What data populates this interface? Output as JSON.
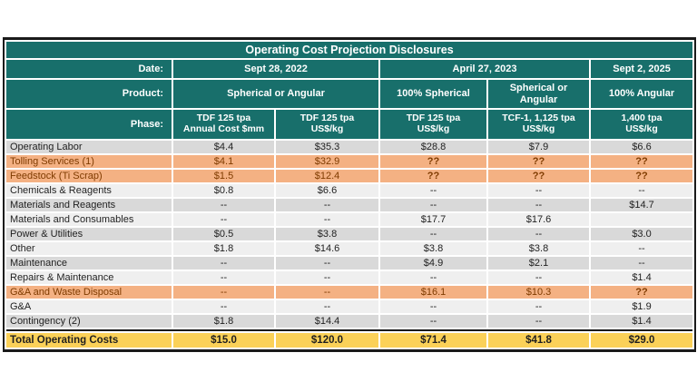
{
  "colors": {
    "teal": "#186f6b",
    "orange": "#f4b183",
    "orange_text": "#7f3b00",
    "yellow": "#fbd158",
    "row_gray": "#d9d9d9",
    "row_light": "#efefef",
    "border_black": "#1a1a1a",
    "header_text": "#ffffff",
    "body_text": "#1f1f1f"
  },
  "chart_data": {
    "type": "table",
    "title": "Operating Cost Projection Disclosures",
    "header": {
      "date_label": "Date:",
      "dates": [
        "Sept 28, 2022",
        "April 27, 2023",
        "Sept 2, 2025"
      ],
      "product_label": "Product:",
      "products": [
        "Spherical or Angular",
        "100% Spherical",
        "Spherical or Angular",
        "100% Angular"
      ],
      "phase_label": "Phase:",
      "phases": [
        {
          "line1": "TDF 125 tpa",
          "line2": "Annual Cost $mm"
        },
        {
          "line1": "TDF 125 tpa",
          "line2": "US$/kg"
        },
        {
          "line1": "TDF 125 tpa",
          "line2": "US$/kg"
        },
        {
          "line1": "TCF-1, 1,125 tpa",
          "line2": "US$/kg"
        },
        {
          "line1": "1,400 tpa",
          "line2": "US$/kg"
        }
      ]
    },
    "rows": [
      {
        "label": "Operating Labor",
        "values": [
          "$4.4",
          "$35.3",
          "$28.8",
          "$7.9",
          "$6.6"
        ],
        "flagged": false
      },
      {
        "label": "Tolling Services (1)",
        "values": [
          "$4.1",
          "$32.9",
          "??",
          "??",
          "??"
        ],
        "flagged": true
      },
      {
        "label": "Feedstock (Ti Scrap)",
        "values": [
          "$1.5",
          "$12.4",
          "??",
          "??",
          "??"
        ],
        "flagged": true
      },
      {
        "label": "Chemicals & Reagents",
        "values": [
          "$0.8",
          "$6.6",
          "--",
          "--",
          "--"
        ],
        "flagged": false
      },
      {
        "label": "Materials and Reagents",
        "values": [
          "--",
          "--",
          "--",
          "--",
          "$14.7"
        ],
        "flagged": false
      },
      {
        "label": "Materials and Consumables",
        "values": [
          "--",
          "--",
          "$17.7",
          "$17.6",
          ""
        ],
        "flagged": false
      },
      {
        "label": "Power & Utilities",
        "values": [
          "$0.5",
          "$3.8",
          "--",
          "--",
          "$3.0"
        ],
        "flagged": false
      },
      {
        "label": "Other",
        "values": [
          "$1.8",
          "$14.6",
          "$3.8",
          "$3.8",
          "--"
        ],
        "flagged": false
      },
      {
        "label": "Maintenance",
        "values": [
          "--",
          "--",
          "$4.9",
          "$2.1",
          "--"
        ],
        "flagged": false
      },
      {
        "label": "Repairs & Maintenance",
        "values": [
          "--",
          "--",
          "--",
          "--",
          "$1.4"
        ],
        "flagged": false
      },
      {
        "label": "G&A and Waste Disposal",
        "values": [
          "--",
          "--",
          "$16.1",
          "$10.3",
          "??"
        ],
        "flagged": true
      },
      {
        "label": "G&A",
        "values": [
          "--",
          "--",
          "--",
          "--",
          "$1.9"
        ],
        "flagged": false
      },
      {
        "label": "Contingency (2)",
        "values": [
          "$1.8",
          "$14.4",
          "--",
          "--",
          "$1.4"
        ],
        "flagged": false
      }
    ],
    "total": {
      "label": "Total Operating Costs",
      "values": [
        "$15.0",
        "$120.0",
        "$71.4",
        "$41.8",
        "$29.0"
      ]
    }
  }
}
